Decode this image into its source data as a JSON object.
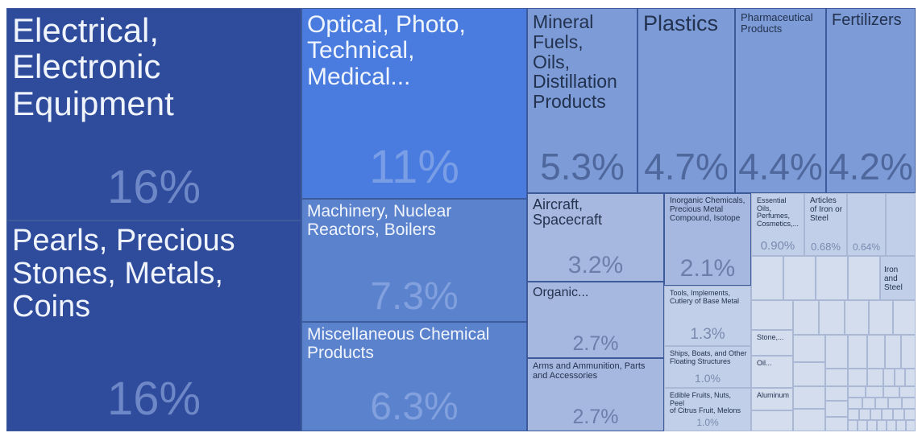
{
  "chart_data": {
    "type": "treemap",
    "title": "",
    "colors": {
      "dark": "#2f4b9b",
      "bright": "#4a7ce0",
      "mid": "#5b82cd",
      "light": "#7d9bd6",
      "lighter": "#a6b8df",
      "pale": "#c2cfe8",
      "palest": "#d4dded"
    },
    "items": [
      {
        "label": "Electrical,\nElectronic\nEquipment",
        "value": "16%",
        "share": 16,
        "tone": "dark",
        "fs": 42,
        "vfs": 58
      },
      {
        "label": "Pearls, Precious\nStones, Metals,\nCoins",
        "value": "16%",
        "share": 16,
        "tone": "dark",
        "fs": 38,
        "vfs": 58
      },
      {
        "label": "Optical, Photo,\nTechnical,\n Medical...",
        "value": "11%",
        "share": 11,
        "tone": "bright",
        "fs": 30,
        "vfs": 58
      },
      {
        "label": "Machinery, Nuclear\nReactors, Boilers",
        "value": "7.3%",
        "share": 7.3,
        "tone": "mid",
        "fs": 21,
        "vfs": 48
      },
      {
        "label": "Miscellaneous Chemical\nProducts",
        "value": "6.3%",
        "share": 6.3,
        "tone": "mid",
        "fs": 21,
        "vfs": 48
      },
      {
        "label": "Mineral\nFuels,\nOils,\nDistillation\nProducts",
        "value": "5.3%",
        "share": 5.3,
        "tone": "light",
        "fs": 23,
        "vfs": 46
      },
      {
        "label": "Plastics",
        "value": "4.7%",
        "share": 4.7,
        "tone": "light",
        "fs": 27,
        "vfs": 46
      },
      {
        "label": "Pharmaceutical\nProducts",
        "value": "4.4%",
        "share": 4.4,
        "tone": "light",
        "fs": 13,
        "vfs": 46
      },
      {
        "label": "Fertilizers",
        "value": "4.2%",
        "share": 4.2,
        "tone": "light",
        "fs": 20,
        "vfs": 46
      },
      {
        "label": "Aircraft,\nSpacecraft",
        "value": "3.2%",
        "share": 3.2,
        "tone": "lighter",
        "fs": 18,
        "vfs": 30
      },
      {
        "label": "Organic...",
        "value": "2.7%",
        "share": 2.7,
        "tone": "lighter",
        "fs": 16,
        "vfs": 25
      },
      {
        "label": "Arms and Ammunition, Parts\nand Accessories",
        "value": "2.7%",
        "share": 2.7,
        "tone": "lighter",
        "fs": 11,
        "vfs": 25
      },
      {
        "label": "Inorganic Chemicals,\nPrecious Metal\nCompound, Isotope",
        "value": "2.1%",
        "share": 2.1,
        "tone": "lighter",
        "fs": 10,
        "vfs": 30
      },
      {
        "label": "Tools, Implements,\nCutlery of Base Metal",
        "value": "1.3%",
        "share": 1.3,
        "tone": "pale",
        "fs": 9,
        "vfs": 19
      },
      {
        "label": "Ships, Boats, and Other\nFloating Structures",
        "value": "1.0%",
        "share": 1.0,
        "tone": "pale",
        "fs": 9,
        "vfs": 14
      },
      {
        "label": "Edible Fruits, Nuts, Peel\nof Citrus Fruit, Melons",
        "value": "1.0%",
        "share": 1.0,
        "tone": "pale",
        "fs": 9,
        "vfs": 12
      },
      {
        "label": "Essential Oils,\nPerfumes,\nCosmetics,...",
        "value": "0.90%",
        "share": 0.9,
        "tone": "pale",
        "fs": 9,
        "vfs": 15
      },
      {
        "label": "Articles\nof Iron or\nSteel",
        "value": "0.68%",
        "share": 0.68,
        "tone": "pale",
        "fs": 10,
        "vfs": 13
      },
      {
        "label": "",
        "value": "0.64%",
        "share": 0.64,
        "tone": "pale",
        "fs": 9,
        "vfs": 12
      },
      {
        "label": "",
        "value": "",
        "share": null,
        "tone": "pale",
        "fs": 9,
        "vfs": 12
      },
      {
        "label": "Iron\nand\nSteel",
        "value": "",
        "share": null,
        "tone": "pale",
        "fs": 10,
        "vfs": 12
      },
      {
        "label": "Stone,...",
        "value": "",
        "share": null,
        "tone": "palest",
        "fs": 9,
        "vfs": 12
      },
      {
        "label": "Oil...",
        "value": "",
        "share": null,
        "tone": "palest",
        "fs": 9,
        "vfs": 12
      },
      {
        "label": "Aluminum",
        "value": "",
        "share": null,
        "tone": "palest",
        "fs": 9,
        "vfs": 12
      }
    ]
  }
}
